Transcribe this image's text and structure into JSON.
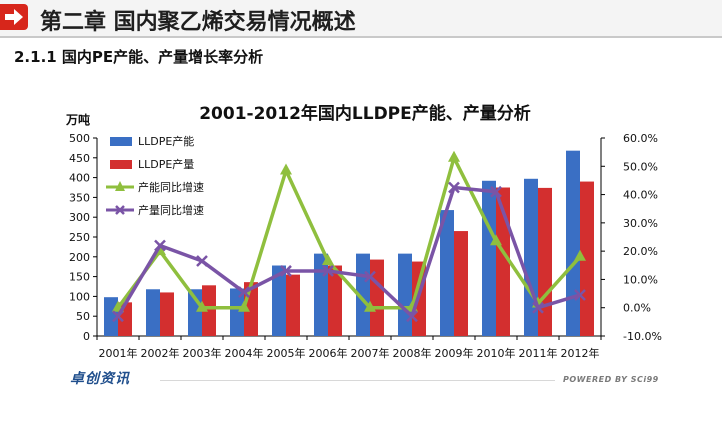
{
  "header": {
    "chapter_title": "第二章 国内聚乙烯交易情况概述",
    "section_title": "2.1.1 国内PE产能、产量增长率分析",
    "accent_color": "#d7261b",
    "badge_icon": "arrow-right-icon"
  },
  "footer": {
    "brand": "卓创资讯",
    "powered": "POWERED BY SCi99"
  },
  "chart_data": {
    "type": "bar",
    "title": "2001-2012年国内LLDPE产能、产量分析",
    "ylabel": "万吨",
    "categories": [
      "2001年",
      "2002年",
      "2003年",
      "2004年",
      "2005年",
      "2006年",
      "2007年",
      "2008年",
      "2009年",
      "2010年",
      "2011年",
      "2012年"
    ],
    "ylim": [
      0,
      500
    ],
    "y_ticks": [
      "0",
      "50",
      "100",
      "150",
      "200",
      "250",
      "300",
      "350",
      "400",
      "450",
      "500"
    ],
    "y2lim": [
      -10,
      60
    ],
    "y2_ticks": [
      "-10.0%",
      "0.0%",
      "10.0%",
      "20.0%",
      "30.0%",
      "40.0%",
      "50.0%",
      "60.0%"
    ],
    "legend_position": "top-left",
    "grid": false,
    "series": [
      {
        "name": "LLDPE产能",
        "kind": "bar",
        "axis": "left",
        "color": "#3a6fc4",
        "values": [
          98,
          118,
          118,
          120,
          178,
          208,
          208,
          208,
          318,
          392,
          397,
          468
        ]
      },
      {
        "name": "LLDPE产量",
        "kind": "bar",
        "axis": "left",
        "color": "#d32f2f",
        "values": [
          85,
          110,
          128,
          136,
          155,
          178,
          193,
          188,
          265,
          375,
          374,
          390
        ]
      },
      {
        "name": "产能同比增速",
        "kind": "line",
        "axis": "right",
        "color": "#8fbf3e",
        "marker": "triangle",
        "values": [
          0.0,
          20.0,
          0.0,
          0.0,
          48.5,
          16.5,
          0.0,
          0.0,
          53.0,
          23.5,
          1.5,
          18.0
        ]
      },
      {
        "name": "产量同比增速",
        "kind": "line",
        "axis": "right",
        "color": "#7a54a6",
        "marker": "x",
        "values": [
          -3.0,
          22.0,
          16.5,
          5.5,
          13.0,
          13.0,
          11.0,
          -3.0,
          42.5,
          41.0,
          0.0,
          4.5
        ]
      }
    ]
  }
}
